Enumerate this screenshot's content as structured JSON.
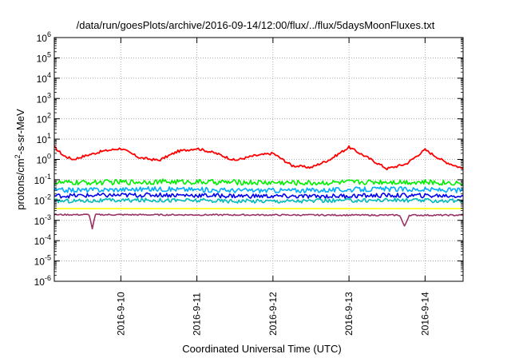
{
  "chart_data": {
    "type": "line",
    "title": "/data/run/goesPlots/archive/2016-09-14/12:00/flux/../flux/5daysMoonFluxes.txt",
    "xlabel": "Coordinated Universal Time (UTC)",
    "ylabel_parts": {
      "base": "protons/cm",
      "sup": "2",
      "rest": "-s-sr-MeV"
    },
    "yscale": "log",
    "ylim": [
      1e-06,
      1000000.0
    ],
    "xlim": [
      "2016-09-09 03:00",
      "2016-09-14 12:00"
    ],
    "grid": true,
    "legend": "none",
    "ytick_labels": [
      {
        "base": "10",
        "exp": "-6"
      },
      {
        "base": "10",
        "exp": "-5"
      },
      {
        "base": "10",
        "exp": "-4"
      },
      {
        "base": "10",
        "exp": "-3"
      },
      {
        "base": "10",
        "exp": "-2"
      },
      {
        "base": "10",
        "exp": "-1"
      },
      {
        "base": "10",
        "exp": "0"
      },
      {
        "base": "10",
        "exp": "1"
      },
      {
        "base": "10",
        "exp": "2"
      },
      {
        "base": "10",
        "exp": "3"
      },
      {
        "base": "10",
        "exp": "4"
      },
      {
        "base": "10",
        "exp": "5"
      },
      {
        "base": "10",
        "exp": "6"
      }
    ],
    "x_ticks": [
      {
        "label": "2016-9-10",
        "time": "2016-09-10 00:00"
      },
      {
        "label": "2016-9-11",
        "time": "2016-09-11 00:00"
      },
      {
        "label": "2016-9-12",
        "time": "2016-09-12 00:00"
      },
      {
        "label": "2016-9-13",
        "time": "2016-09-13 00:00"
      },
      {
        "label": "2016-9-14",
        "time": "2016-09-14 00:00"
      }
    ],
    "series": [
      {
        "color": "#ff0000",
        "times": [
          "2016-09-09 03:00",
          "2016-09-09 06:00",
          "2016-09-09 09:00",
          "2016-09-09 12:00",
          "2016-09-09 18:00",
          "2016-09-10 00:00",
          "2016-09-10 06:00",
          "2016-09-10 12:00",
          "2016-09-10 18:00",
          "2016-09-11 00:00",
          "2016-09-11 06:00",
          "2016-09-11 12:00",
          "2016-09-11 18:00",
          "2016-09-12 00:00",
          "2016-09-12 06:00",
          "2016-09-12 12:00",
          "2016-09-12 18:00",
          "2016-09-13 00:00",
          "2016-09-13 06:00",
          "2016-09-13 12:00",
          "2016-09-13 18:00",
          "2016-09-14 00:00",
          "2016-09-14 06:00",
          "2016-09-14 12:00"
        ],
        "values": [
          4,
          1.5,
          1.0,
          1.4,
          2.5,
          3.5,
          1.2,
          0.9,
          2.5,
          3.5,
          2.0,
          0.9,
          1.5,
          2.0,
          0.5,
          0.4,
          1.0,
          4.0,
          1.2,
          0.35,
          0.6,
          3.0,
          0.8,
          0.35
        ]
      },
      {
        "color": "#00ee00",
        "times": [
          "2016-09-09 03:00",
          "2016-09-10 12:00",
          "2016-09-11 12:00",
          "2016-09-12 12:00",
          "2016-09-13 12:00",
          "2016-09-14 12:00"
        ],
        "values": [
          0.07,
          0.08,
          0.075,
          0.07,
          0.08,
          0.07
        ]
      },
      {
        "color": "#00aaff",
        "times": [
          "2016-09-09 03:00",
          "2016-09-10 12:00",
          "2016-09-11 12:00",
          "2016-09-12 12:00",
          "2016-09-13 12:00",
          "2016-09-14 12:00"
        ],
        "values": [
          0.03,
          0.035,
          0.03,
          0.03,
          0.035,
          0.03
        ]
      },
      {
        "color": "#0000ee",
        "times": [
          "2016-09-09 03:00",
          "2016-09-10 12:00",
          "2016-09-11 12:00",
          "2016-09-12 12:00",
          "2016-09-13 12:00",
          "2016-09-14 12:00"
        ],
        "values": [
          0.016,
          0.018,
          0.016,
          0.015,
          0.017,
          0.016
        ]
      },
      {
        "color": "#00bbbb",
        "times": [
          "2016-09-09 03:00",
          "2016-09-10 12:00",
          "2016-09-11 12:00",
          "2016-09-12 12:00",
          "2016-09-13 12:00",
          "2016-09-14 12:00"
        ],
        "values": [
          0.009,
          0.01,
          0.009,
          0.009,
          0.01,
          0.009
        ]
      },
      {
        "color": "#ffff00",
        "times": [
          "2016-09-09 03:00",
          "2016-09-14 12:00"
        ],
        "values": [
          0.0038,
          0.0038
        ]
      },
      {
        "color": "#993366",
        "times": [
          "2016-09-09 03:00",
          "2016-09-09 14:00",
          "2016-09-09 15:00",
          "2016-09-09 16:00",
          "2016-09-13 16:00",
          "2016-09-13 17:30",
          "2016-09-13 19:00",
          "2016-09-14 12:00"
        ],
        "values": [
          0.0019,
          0.0019,
          0.0004,
          0.0019,
          0.0018,
          0.0005,
          0.0018,
          0.0018
        ]
      }
    ]
  }
}
